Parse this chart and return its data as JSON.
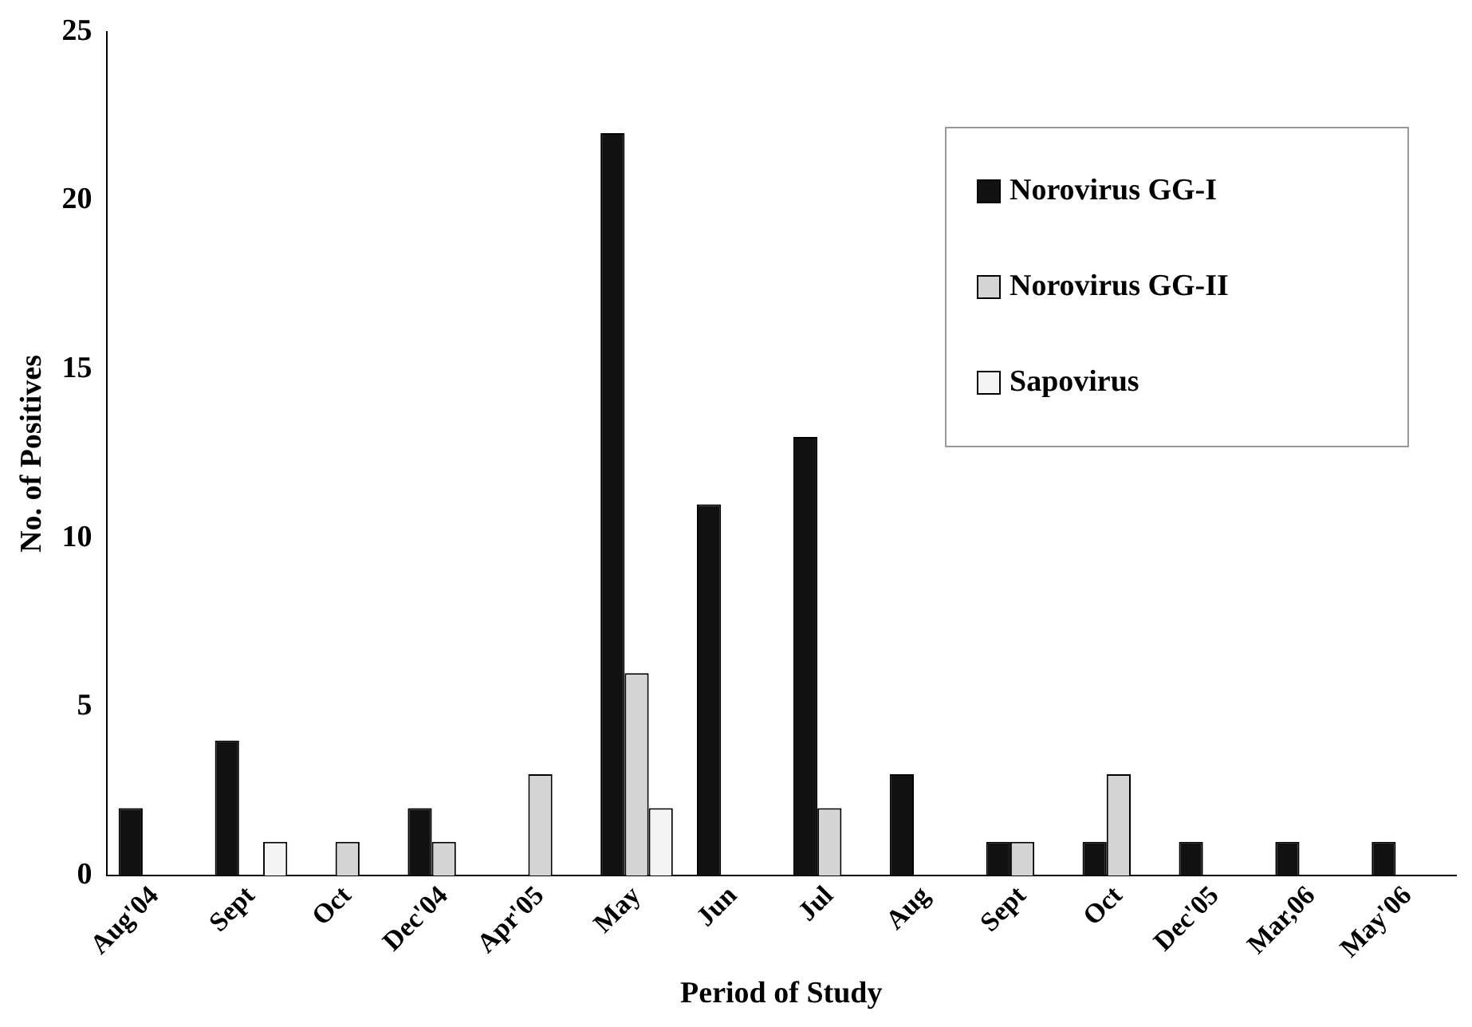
{
  "chart_data": {
    "type": "bar",
    "xlabel": "Period of Study",
    "ylabel": "No. of Positives",
    "categories": [
      "Aug'04",
      "Sept",
      "Oct",
      "Dec'04",
      "Apr'05",
      "May",
      "Jun",
      "Jul",
      "Aug",
      "Sept",
      "Oct",
      "Dec'05",
      "Mar,06",
      "May'06"
    ],
    "series": [
      {
        "name": "Norovirus GG-I",
        "color": "#111111",
        "values": [
          2,
          4,
          0,
          2,
          0,
          22,
          11,
          13,
          3,
          1,
          1,
          1,
          1,
          1
        ]
      },
      {
        "name": "Norovirus GG-II",
        "color": "#d4d4d4",
        "values": [
          0,
          0,
          1,
          1,
          3,
          6,
          0,
          2,
          0,
          1,
          3,
          0,
          0,
          0
        ]
      },
      {
        "name": "Sapovirus",
        "color": "#f4f4f4",
        "values": [
          0,
          1,
          0,
          0,
          0,
          2,
          0,
          0,
          0,
          0,
          0,
          0,
          0,
          0
        ]
      }
    ],
    "ylim": [
      0,
      25
    ],
    "yticks": [
      0,
      5,
      10,
      15,
      20,
      25
    ],
    "grid": false,
    "legend": "top right"
  }
}
